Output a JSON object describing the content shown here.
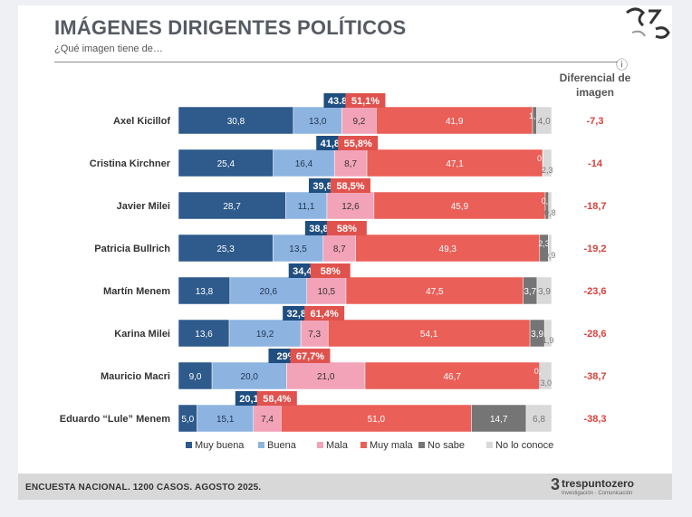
{
  "header": {
    "title": "IMÁGENES DIRIGENTES POLÍTICOS",
    "subtitle": "¿Qué imagen tiene de…"
  },
  "colors": {
    "muy_buena": "#2e5a8c",
    "buena": "#8db4e0",
    "mala": "#f2a3b8",
    "muy_mala": "#ea5f57",
    "no_sabe": "#757575",
    "no_conoce": "#d9d9d9",
    "positive_box": "#1f4e80",
    "negative_box": "#e0524d",
    "diff_text": "#d9403a"
  },
  "chart_data": {
    "type": "bar",
    "orientation": "horizontal-stacked",
    "title": "IMÁGENES DIRIGENTES POLÍTICOS",
    "categories": [
      "Axel Kicillof",
      "Cristina Kirchner",
      "Javier Milei",
      "Patricia Bullrich",
      "Martín Menem",
      "Karina Milei",
      "Mauricio Macri",
      "Eduardo “Lule” Menem"
    ],
    "series": [
      {
        "name": "Muy buena",
        "values": [
          30.8,
          25.4,
          28.7,
          25.3,
          13.8,
          13.6,
          9.0,
          5.0
        ],
        "labels": [
          "30,8",
          "25,4",
          "28,7",
          "25,3",
          "13,8",
          "13,6",
          "9,0",
          "5,0"
        ]
      },
      {
        "name": "Buena",
        "values": [
          13.0,
          16.4,
          11.1,
          13.5,
          20.6,
          19.2,
          20.0,
          15.1
        ],
        "labels": [
          "13,0",
          "16,4",
          "11,1",
          "13,5",
          "20,6",
          "19,2",
          "20,0",
          "15,1"
        ]
      },
      {
        "name": "Mala",
        "values": [
          9.2,
          8.7,
          12.6,
          8.7,
          10.5,
          7.3,
          21.0,
          7.4
        ],
        "labels": [
          "9,2",
          "8,7",
          "12,6",
          "8,7",
          "10,5",
          "7,3",
          "21,0",
          "7,4"
        ]
      },
      {
        "name": "Muy mala",
        "values": [
          41.9,
          47.1,
          45.9,
          49.3,
          47.5,
          54.1,
          46.7,
          51.0
        ],
        "labels": [
          "41,9",
          "47,1",
          "45,9",
          "49,3",
          "47,5",
          "54,1",
          "46,7",
          "51,0"
        ]
      },
      {
        "name": "No  sabe",
        "values": [
          1.1,
          0.1,
          0.9,
          2.3,
          3.7,
          3.9,
          0.3,
          14.7
        ],
        "labels": [
          "1,1",
          "0,1",
          "0,9",
          "2,3",
          "3,7",
          "3,9",
          "0,3",
          "14,7"
        ]
      },
      {
        "name": "No lo conoce",
        "values": [
          4.0,
          2.3,
          0.8,
          0.9,
          3.9,
          1.9,
          3.0,
          6.8
        ],
        "labels": [
          "4,0",
          "2,3",
          "0,8",
          "0,9",
          "3,9",
          "1,9",
          "3,0",
          "6,8"
        ]
      }
    ],
    "positive_totals": [
      "43.8%",
      "41,8%",
      "39,8%",
      "38,8%",
      "34,4%",
      "32,8%",
      "29%",
      "20,1%"
    ],
    "negative_totals": [
      "51,1%",
      "55,8%",
      "58,5%",
      "58%",
      "58%",
      "61,4%",
      "67,7%",
      "58,4%"
    ],
    "diferencial_header": "Diferencial de imagen",
    "diferencial": [
      "-7,3",
      "-14",
      "-18,7",
      "-19,2",
      "-23,6",
      "-28,6",
      "-38,7",
      "-38,3"
    ],
    "legend_position": "bottom",
    "xlim": [
      0,
      100
    ]
  },
  "footer": {
    "text": "ENCUESTA NACIONAL. 1200 CASOS. AGOSTO 2025.",
    "brand_name": "trespuntozero",
    "brand_tag": "Investigación · Comunicación"
  }
}
